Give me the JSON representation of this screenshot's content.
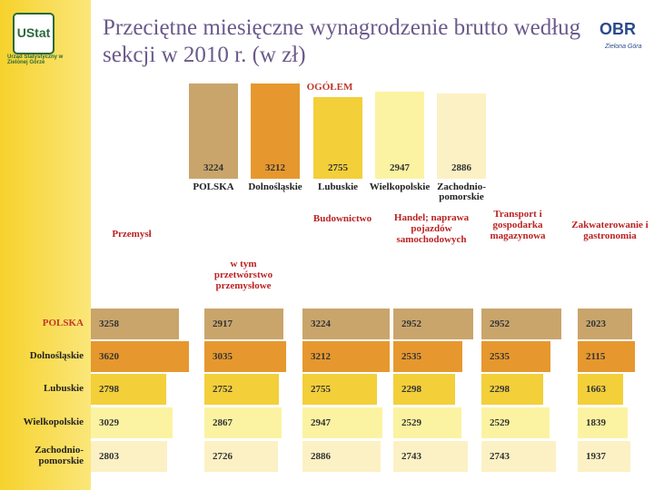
{
  "title": "Przeciętne miesięczne wynagrodzenie brutto według sekcji w 2010 r. (w zł)",
  "logo_left": {
    "name": "UStat",
    "caption": "Urząd Statystyczny w Zielonej Górze"
  },
  "logo_right": {
    "name": "OBR",
    "caption": "Zielona Góra"
  },
  "chart_data": [
    {
      "type": "bar",
      "title": "OGÓŁEM",
      "categories": [
        "POLSKA",
        "Dolnośląskie",
        "Lubuskie",
        "Wielkopolskie",
        "Zachodnio-pomorskie"
      ],
      "values": [
        3224,
        3212,
        2755,
        2947,
        2886
      ],
      "colors": [
        "#c9a56c",
        "#e6982e",
        "#f3cf3a",
        "#fbf3a2",
        "#fcf1c4"
      ]
    },
    {
      "type": "hbar",
      "categories": [
        "POLSKA",
        "Dolnośląskie",
        "Lubuskie",
        "Wielkopolskie",
        "Zachodnio-pomorskie"
      ],
      "colors": [
        "#c9a56c",
        "#e6982e",
        "#f3cf3a",
        "#fbf3a2",
        "#fcf1c4"
      ],
      "series": [
        {
          "name": "Przemysł",
          "values": [
            3258,
            3620,
            2798,
            3029,
            2803
          ]
        },
        {
          "name": "w tym przetwórstwo przemysłowe",
          "values": [
            2917,
            3035,
            2752,
            2867,
            2726
          ]
        },
        {
          "name": "Budownictwo",
          "values": [
            3224,
            3212,
            2755,
            2947,
            2886
          ]
        },
        {
          "name": "Handel; naprawa pojazdów samochodowych",
          "values": [
            2952,
            2535,
            2298,
            2529,
            2743
          ]
        },
        {
          "name": "Transport i gospodarka magazynowa",
          "values": [
            2952,
            2535,
            2298,
            2529,
            2743
          ]
        },
        {
          "name": "Zakwaterowanie i gastronomia",
          "values": [
            2023,
            2115,
            1663,
            1839,
            1937
          ]
        }
      ]
    }
  ]
}
